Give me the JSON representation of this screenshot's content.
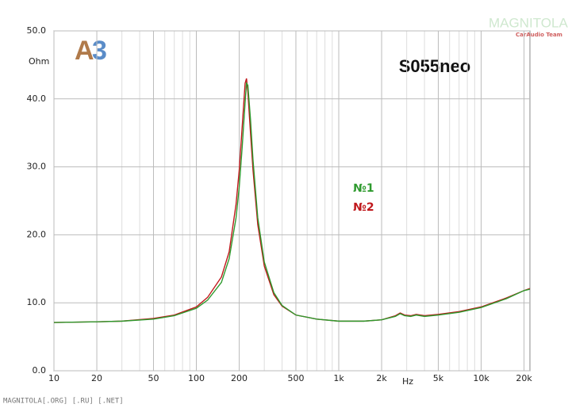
{
  "chart_data": {
    "type": "line",
    "title": "S055neo",
    "y_unit": "Ohm",
    "x_label": "Hz",
    "x": [
      10,
      20,
      30,
      50,
      70,
      100,
      120,
      150,
      170,
      190,
      200,
      210,
      220,
      225,
      230,
      240,
      250,
      270,
      300,
      350,
      400,
      500,
      700,
      1000,
      1500,
      2000,
      2500,
      2700,
      2900,
      3200,
      3500,
      4000,
      5000,
      7000,
      10000,
      15000,
      20000,
      22000
    ],
    "series": [
      {
        "name": "№2",
        "color": "#c0181c",
        "values": [
          7.1,
          7.2,
          7.3,
          7.7,
          8.2,
          9.4,
          10.8,
          13.8,
          17.5,
          24.5,
          29.5,
          36,
          42.3,
          43.0,
          41.0,
          35,
          29.5,
          21.5,
          15.4,
          11.2,
          9.5,
          8.2,
          7.6,
          7.3,
          7.3,
          7.5,
          8.1,
          8.5,
          8.2,
          8.1,
          8.3,
          8.1,
          8.3,
          8.7,
          9.4,
          10.7,
          11.8,
          12.1
        ]
      },
      {
        "name": "№1",
        "color": "#2e9a2e",
        "values": [
          7.1,
          7.2,
          7.3,
          7.6,
          8.1,
          9.2,
          10.4,
          13.0,
          16.5,
          22.5,
          27,
          33,
          39.5,
          42.3,
          42.0,
          37,
          31,
          22.5,
          16.0,
          11.5,
          9.6,
          8.2,
          7.6,
          7.3,
          7.3,
          7.5,
          8.0,
          8.4,
          8.1,
          8.0,
          8.2,
          8.0,
          8.2,
          8.6,
          9.3,
          10.6,
          11.8,
          12.0
        ]
      }
    ],
    "log_x": true,
    "xlim": [
      10,
      22000
    ],
    "xticks": [
      10,
      20,
      50,
      100,
      200,
      500,
      {
        "value": 1000,
        "label": "1k"
      },
      {
        "value": 2000,
        "label": "2k"
      },
      {
        "value": 5000,
        "label": "5k"
      },
      {
        "value": 10000,
        "label": "10k"
      },
      {
        "value": 20000,
        "label": "20k"
      }
    ],
    "xminorticks": [
      30,
      40,
      60,
      70,
      80,
      90,
      300,
      400,
      600,
      700,
      800,
      900,
      3000,
      4000,
      6000,
      7000,
      8000,
      9000
    ],
    "ylim": [
      0,
      50
    ],
    "yticks": [
      {
        "value": 0,
        "label": "0.0"
      },
      {
        "value": 10,
        "label": "10.0"
      },
      {
        "value": 20,
        "label": "20.0"
      },
      {
        "value": 30,
        "label": "30.0"
      },
      {
        "value": 40,
        "label": "40.0"
      },
      {
        "value": 50,
        "label": "50.0"
      }
    ],
    "grid": true
  },
  "branding": {
    "logo_a": "A",
    "logo_3": "3",
    "watermark": "MAGNITOLA",
    "watermark_sub": "CarAudio Team",
    "footer": "MAGNITOLA[.ORG] [.RU] [.NET]"
  }
}
